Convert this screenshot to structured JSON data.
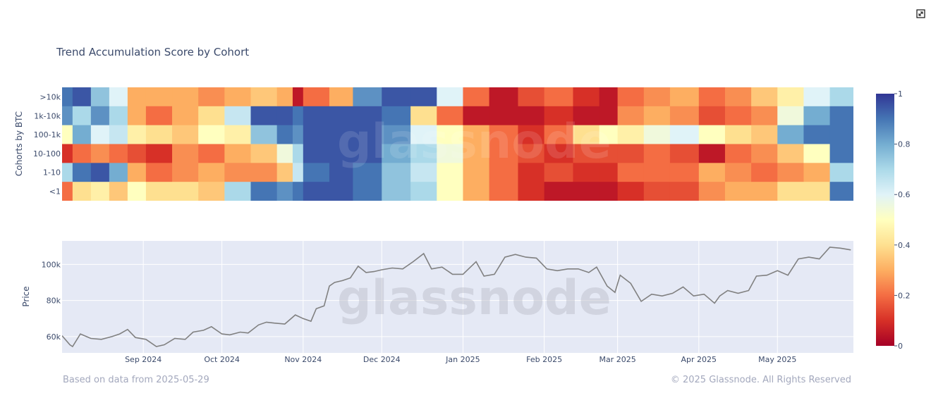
{
  "title": "Trend Accumulation Score by Cohort",
  "footer": {
    "left": "Based on data from 2025-05-29",
    "right": "© 2025 Glassnode. All Rights Reserved"
  },
  "watermark": "glassnode",
  "icons": {
    "fullscreen": "expand-icon"
  },
  "chart_data": [
    {
      "type": "heatmap",
      "ylabel": "Cohorts by BTC",
      "rows": [
        ">10k",
        "1k-10k",
        "100-1k",
        "10-100",
        "1-10",
        "<1"
      ],
      "colorbar": {
        "min": 0,
        "max": 1,
        "ticks": [
          "1",
          "0.8",
          "0.6",
          "0.4",
          "0.2",
          "0"
        ],
        "colorscale": "RdYlBu"
      },
      "x_start": "2024-08-01",
      "x_end": "2025-05-29",
      "segments": [
        {
          "start": "2024-08-01",
          "values": [
            0.9,
            0.85,
            0.5,
            0.1,
            0.7,
            0.2
          ]
        },
        {
          "start": "2024-08-05",
          "values": [
            0.95,
            0.7,
            0.8,
            0.2,
            0.9,
            0.4
          ]
        },
        {
          "start": "2024-08-12",
          "values": [
            0.75,
            0.85,
            0.6,
            0.25,
            0.95,
            0.45
          ]
        },
        {
          "start": "2024-08-19",
          "values": [
            0.6,
            0.7,
            0.65,
            0.2,
            0.8,
            0.35
          ]
        },
        {
          "start": "2024-08-26",
          "values": [
            0.3,
            0.3,
            0.45,
            0.15,
            0.3,
            0.5
          ]
        },
        {
          "start": "2024-09-02",
          "values": [
            0.3,
            0.2,
            0.4,
            0.1,
            0.2,
            0.4
          ]
        },
        {
          "start": "2024-09-12",
          "values": [
            0.3,
            0.3,
            0.35,
            0.25,
            0.25,
            0.4
          ]
        },
        {
          "start": "2024-09-22",
          "values": [
            0.25,
            0.4,
            0.5,
            0.2,
            0.3,
            0.35
          ]
        },
        {
          "start": "2024-10-02",
          "values": [
            0.3,
            0.65,
            0.45,
            0.3,
            0.25,
            0.7
          ]
        },
        {
          "start": "2024-10-12",
          "values": [
            0.35,
            0.95,
            0.75,
            0.35,
            0.25,
            0.9
          ]
        },
        {
          "start": "2024-10-22",
          "values": [
            0.3,
            0.95,
            0.9,
            0.55,
            0.35,
            0.85
          ]
        },
        {
          "start": "2024-10-28",
          "values": [
            0.05,
            0.9,
            0.85,
            0.7,
            0.65,
            0.9
          ]
        },
        {
          "start": "2024-11-01",
          "values": [
            0.2,
            0.95,
            0.95,
            0.95,
            0.9,
            0.95
          ]
        },
        {
          "start": "2024-11-11",
          "values": [
            0.3,
            0.95,
            0.95,
            0.95,
            0.95,
            0.95
          ]
        },
        {
          "start": "2024-11-20",
          "values": [
            0.85,
            0.95,
            0.95,
            0.95,
            0.9,
            0.9
          ]
        },
        {
          "start": "2024-12-01",
          "values": [
            0.95,
            0.9,
            0.85,
            0.8,
            0.75,
            0.75
          ]
        },
        {
          "start": "2024-12-12",
          "values": [
            0.95,
            0.4,
            0.6,
            0.7,
            0.65,
            0.7
          ]
        },
        {
          "start": "2024-12-22",
          "values": [
            0.6,
            0.2,
            0.5,
            0.55,
            0.5,
            0.5
          ]
        },
        {
          "start": "2025-01-01",
          "values": [
            0.2,
            0.05,
            0.3,
            0.3,
            0.3,
            0.3
          ]
        },
        {
          "start": "2025-01-11",
          "values": [
            0.05,
            0.05,
            0.2,
            0.2,
            0.2,
            0.2
          ]
        },
        {
          "start": "2025-01-22",
          "values": [
            0.15,
            0.05,
            0.1,
            0.15,
            0.1,
            0.1
          ]
        },
        {
          "start": "2025-02-01",
          "values": [
            0.2,
            0.1,
            0.2,
            0.1,
            0.15,
            0.05
          ]
        },
        {
          "start": "2025-02-12",
          "values": [
            0.1,
            0.05,
            0.4,
            0.15,
            0.1,
            0.05
          ]
        },
        {
          "start": "2025-02-22",
          "values": [
            0.05,
            0.05,
            0.5,
            0.15,
            0.1,
            0.05
          ]
        },
        {
          "start": "2025-03-01",
          "values": [
            0.2,
            0.25,
            0.45,
            0.15,
            0.2,
            0.1
          ]
        },
        {
          "start": "2025-03-11",
          "values": [
            0.25,
            0.3,
            0.55,
            0.2,
            0.2,
            0.15
          ]
        },
        {
          "start": "2025-03-21",
          "values": [
            0.3,
            0.25,
            0.6,
            0.15,
            0.2,
            0.15
          ]
        },
        {
          "start": "2025-04-01",
          "values": [
            0.2,
            0.15,
            0.5,
            0.05,
            0.3,
            0.25
          ]
        },
        {
          "start": "2025-04-11",
          "values": [
            0.25,
            0.2,
            0.4,
            0.2,
            0.25,
            0.3
          ]
        },
        {
          "start": "2025-04-21",
          "values": [
            0.35,
            0.25,
            0.35,
            0.25,
            0.2,
            0.3
          ]
        },
        {
          "start": "2025-05-01",
          "values": [
            0.45,
            0.55,
            0.8,
            0.35,
            0.25,
            0.4
          ]
        },
        {
          "start": "2025-05-11",
          "values": [
            0.6,
            0.8,
            0.9,
            0.5,
            0.3,
            0.4
          ]
        },
        {
          "start": "2025-05-21",
          "values": [
            0.7,
            0.9,
            0.9,
            0.9,
            0.7,
            0.9
          ]
        }
      ]
    },
    {
      "type": "line",
      "ylabel": "Price",
      "ylim": [
        51000,
        113000
      ],
      "yticks": [
        60000,
        80000,
        100000
      ],
      "ytick_labels": [
        "60k",
        "80k",
        "100k"
      ],
      "xticks": [
        "2024-09-01",
        "2024-10-01",
        "2024-11-01",
        "2024-12-01",
        "2025-01-01",
        "2025-02-01",
        "2025-03-01",
        "2025-04-01",
        "2025-05-01"
      ],
      "xtick_labels": [
        "Sep 2024",
        "Oct 2024",
        "Nov 2024",
        "Dec 2024",
        "Jan 2025",
        "Feb 2025",
        "Mar 2025",
        "Apr 2025",
        "May 2025"
      ],
      "line_color": "#808080",
      "series": [
        {
          "points": [
            [
              "2024-08-01",
              60500
            ],
            [
              "2024-08-04",
              55500
            ],
            [
              "2024-08-05",
              54500
            ],
            [
              "2024-08-08",
              61500
            ],
            [
              "2024-08-12",
              59000
            ],
            [
              "2024-08-16",
              58500
            ],
            [
              "2024-08-20",
              60000
            ],
            [
              "2024-08-23",
              61500
            ],
            [
              "2024-08-26",
              64000
            ],
            [
              "2024-08-29",
              59500
            ],
            [
              "2024-09-02",
              58500
            ],
            [
              "2024-09-06",
              54500
            ],
            [
              "2024-09-09",
              55500
            ],
            [
              "2024-09-13",
              59000
            ],
            [
              "2024-09-17",
              58500
            ],
            [
              "2024-09-20",
              62500
            ],
            [
              "2024-09-24",
              63500
            ],
            [
              "2024-09-27",
              65500
            ],
            [
              "2024-10-01",
              61500
            ],
            [
              "2024-10-04",
              61000
            ],
            [
              "2024-10-08",
              62500
            ],
            [
              "2024-10-11",
              62000
            ],
            [
              "2024-10-15",
              66500
            ],
            [
              "2024-10-18",
              68000
            ],
            [
              "2024-10-21",
              67500
            ],
            [
              "2024-10-25",
              67000
            ],
            [
              "2024-10-29",
              72000
            ],
            [
              "2024-11-01",
              70000
            ],
            [
              "2024-11-04",
              68500
            ],
            [
              "2024-11-06",
              75500
            ],
            [
              "2024-11-09",
              77000
            ],
            [
              "2024-11-11",
              88000
            ],
            [
              "2024-11-13",
              90000
            ],
            [
              "2024-11-16",
              91000
            ],
            [
              "2024-11-19",
              92500
            ],
            [
              "2024-11-22",
              99000
            ],
            [
              "2024-11-25",
              95500
            ],
            [
              "2024-11-28",
              96000
            ],
            [
              "2024-12-01",
              97000
            ],
            [
              "2024-12-05",
              98000
            ],
            [
              "2024-12-09",
              97500
            ],
            [
              "2024-12-13",
              101500
            ],
            [
              "2024-12-17",
              106000
            ],
            [
              "2024-12-20",
              97500
            ],
            [
              "2024-12-24",
              98500
            ],
            [
              "2024-12-28",
              94500
            ],
            [
              "2025-01-01",
              94500
            ],
            [
              "2025-01-06",
              101500
            ],
            [
              "2025-01-09",
              93500
            ],
            [
              "2025-01-13",
              94500
            ],
            [
              "2025-01-17",
              104000
            ],
            [
              "2025-01-21",
              105500
            ],
            [
              "2025-01-25",
              104000
            ],
            [
              "2025-01-29",
              103500
            ],
            [
              "2025-02-02",
              97500
            ],
            [
              "2025-02-06",
              96500
            ],
            [
              "2025-02-10",
              97500
            ],
            [
              "2025-02-14",
              97500
            ],
            [
              "2025-02-18",
              95500
            ],
            [
              "2025-02-21",
              98500
            ],
            [
              "2025-02-25",
              88000
            ],
            [
              "2025-02-28",
              84500
            ],
            [
              "2025-03-02",
              94000
            ],
            [
              "2025-03-06",
              89500
            ],
            [
              "2025-03-10",
              79500
            ],
            [
              "2025-03-14",
              83500
            ],
            [
              "2025-03-18",
              82500
            ],
            [
              "2025-03-22",
              84000
            ],
            [
              "2025-03-26",
              87500
            ],
            [
              "2025-03-30",
              82500
            ],
            [
              "2025-04-03",
              83500
            ],
            [
              "2025-04-07",
              78500
            ],
            [
              "2025-04-09",
              82500
            ],
            [
              "2025-04-12",
              85500
            ],
            [
              "2025-04-16",
              84000
            ],
            [
              "2025-04-20",
              85500
            ],
            [
              "2025-04-23",
              93500
            ],
            [
              "2025-04-27",
              94000
            ],
            [
              "2025-05-01",
              96500
            ],
            [
              "2025-05-05",
              94000
            ],
            [
              "2025-05-09",
              103000
            ],
            [
              "2025-05-13",
              104000
            ],
            [
              "2025-05-17",
              103000
            ],
            [
              "2025-05-21",
              109500
            ],
            [
              "2025-05-25",
              109000
            ],
            [
              "2025-05-29",
              108000
            ]
          ]
        }
      ]
    }
  ]
}
